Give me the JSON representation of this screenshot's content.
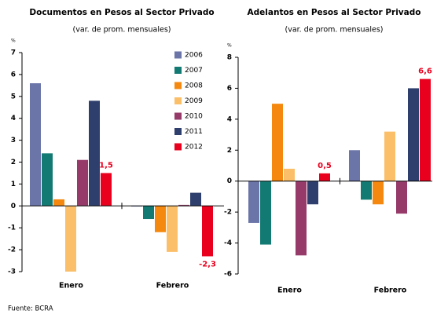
{
  "chart_data": [
    {
      "type": "bar",
      "title": "Documentos en Pesos al Sector Privado",
      "subtitle": "(var. de prom. mensuales)",
      "y_label": "%",
      "categories": [
        "Enero",
        "Febrero"
      ],
      "series": [
        {
          "name": "2006",
          "color": "#6b75a8",
          "values": [
            5.6,
            0
          ]
        },
        {
          "name": "2007",
          "color": "#127a72",
          "values": [
            2.4,
            -0.6
          ]
        },
        {
          "name": "2008",
          "color": "#f5890f",
          "values": [
            0.3,
            -1.2
          ]
        },
        {
          "name": "2009",
          "color": "#fbbf6a",
          "values": [
            -3.0,
            -2.1
          ]
        },
        {
          "name": "2010",
          "color": "#963a6a",
          "values": [
            2.1,
            0.05
          ]
        },
        {
          "name": "2011",
          "color": "#2e3f6d",
          "values": [
            4.8,
            0.6
          ]
        },
        {
          "name": "2012",
          "color": "#e8001e",
          "values": [
            1.5,
            -2.3
          ],
          "value_labels": [
            "1,5",
            "-2,3"
          ]
        }
      ],
      "ylim": [
        -3,
        7
      ],
      "yticks": [
        -3,
        -2,
        -1,
        0,
        1,
        2,
        3,
        4,
        5,
        6,
        7
      ],
      "legend": "upper right"
    },
    {
      "type": "bar",
      "title": "Adelantos en Pesos al Sector Privado",
      "subtitle": "(var. de prom. mensuales)",
      "y_label": "%",
      "categories": [
        "Enero",
        "Febrero"
      ],
      "series": [
        {
          "name": "2006",
          "color": "#6b75a8",
          "values": [
            -2.7,
            2.0
          ]
        },
        {
          "name": "2007",
          "color": "#127a72",
          "values": [
            -4.1,
            -1.2
          ]
        },
        {
          "name": "2008",
          "color": "#f5890f",
          "values": [
            5.0,
            -1.5
          ]
        },
        {
          "name": "2009",
          "color": "#fbbf6a",
          "values": [
            0.8,
            3.2
          ]
        },
        {
          "name": "2010",
          "color": "#963a6a",
          "values": [
            -4.8,
            -2.1
          ]
        },
        {
          "name": "2011",
          "color": "#2e3f6d",
          "values": [
            -1.5,
            6.0
          ]
        },
        {
          "name": "2012",
          "color": "#e8001e",
          "values": [
            0.5,
            6.6
          ],
          "value_labels": [
            "0,5",
            "6,6"
          ]
        }
      ],
      "ylim": [
        -6,
        8
      ],
      "yticks": [
        -6,
        -4,
        -2,
        0,
        2,
        4,
        6,
        8
      ],
      "legend": false
    }
  ],
  "source": "Fuente: BCRA"
}
